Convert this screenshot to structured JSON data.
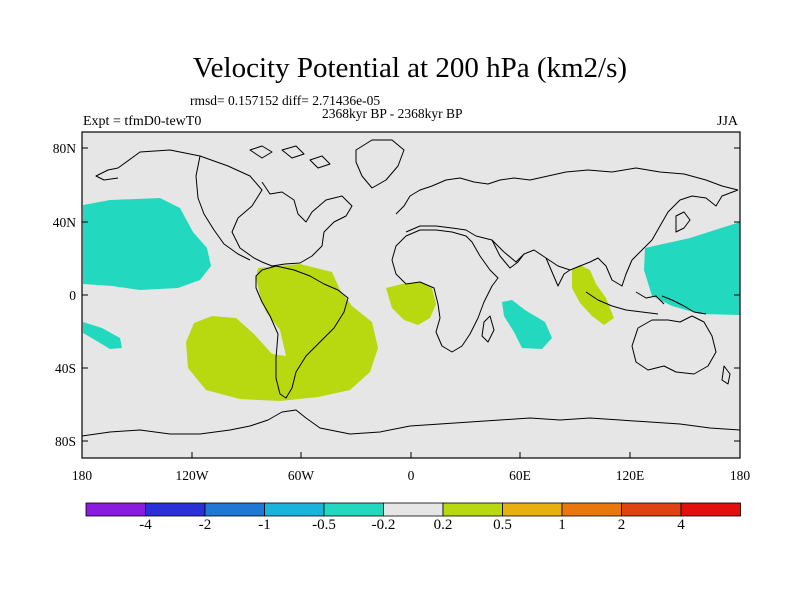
{
  "title": "Velocity Potential at 200 hPa (km2/s)",
  "stats": "rmsd= 0.157152 diff= 2.71436e-05",
  "period": "2368kyr BP - 2368kyr BP",
  "expt": "Expt = tfmD0-tewT0",
  "season": "JJA",
  "y_axis_labels": [
    "80N",
    "40N",
    "0",
    "40S",
    "80S"
  ],
  "x_axis_labels": [
    "180",
    "120W",
    "60W",
    "0",
    "60E",
    "120E",
    "180"
  ],
  "colorbar": {
    "labels": [
      "-4",
      "-2",
      "-1",
      "-0.5",
      "-0.2",
      "0.2",
      "0.5",
      "1",
      "2",
      "4"
    ],
    "colors": [
      "#8c1be0",
      "#2a2fd8",
      "#1f78d6",
      "#19b4dc",
      "#22d9bf",
      "#e6e6e6",
      "#b8d810",
      "#e8b00e",
      "#e8780c",
      "#e04212",
      "#e30e0e"
    ]
  },
  "colors": {
    "ocean_background": "#e6e6e6",
    "negative_region": "#22d9bf",
    "positive_region": "#b8d810"
  }
}
